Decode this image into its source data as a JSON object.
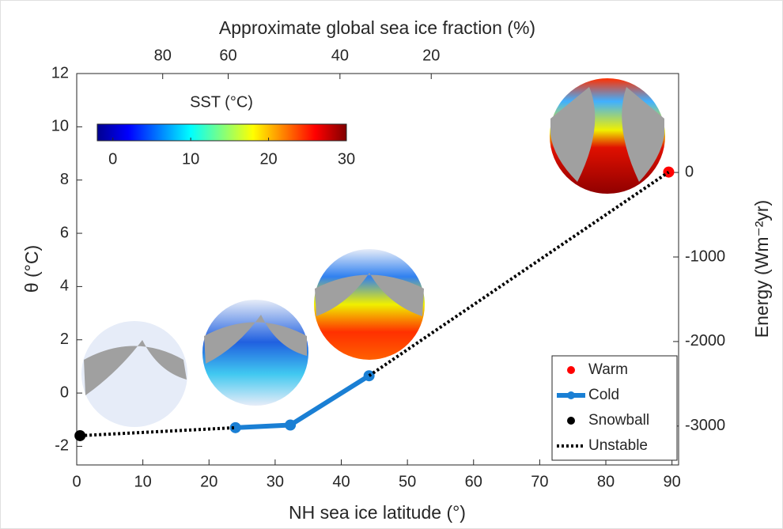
{
  "chart_data": {
    "type": "line",
    "x_label": "NH sea ice latitude (°)",
    "y_label": "θ (°C)",
    "y2_label": "Energy (Wm⁻²yr)",
    "x2_label": "Approximate global sea ice fraction (%)",
    "xlim": [
      0,
      91
    ],
    "xticks": [
      0,
      10,
      20,
      30,
      40,
      50,
      60,
      70,
      80,
      90
    ],
    "ylim": [
      -2.7,
      12
    ],
    "yticks": [
      -2,
      0,
      2,
      4,
      6,
      8,
      10,
      12
    ],
    "y2lim": [
      -3460,
      1170
    ],
    "y2ticks": [
      0,
      -1000,
      -2000,
      -3000
    ],
    "x2ticks": [
      {
        "value": 13.0,
        "label": "80"
      },
      {
        "value": 22.9,
        "label": "60"
      },
      {
        "value": 39.8,
        "label": "40"
      },
      {
        "value": 53.6,
        "label": "20"
      }
    ],
    "colorbar": {
      "title": "SST (°C)",
      "clim": [
        -2,
        30
      ],
      "ticks": [
        0,
        10,
        20,
        30
      ],
      "colormap": "jet"
    },
    "legend": "lower right",
    "series": [
      {
        "name": "Warm",
        "color": "#ff0000",
        "linestyle": "none",
        "marker": true,
        "x": [
          89.5
        ],
        "values": [
          8.3
        ]
      },
      {
        "name": "Cold",
        "color": "#1a7fd4",
        "linestyle": "solid",
        "marker": true,
        "x": [
          24,
          32.3,
          44.2
        ],
        "values": [
          -1.3,
          -1.2,
          0.65
        ]
      },
      {
        "name": "Snowball",
        "color": "#000000",
        "linestyle": "none",
        "marker": true,
        "x": [
          0.5
        ],
        "values": [
          -1.6
        ]
      },
      {
        "name": "Unstable",
        "color": "#000000",
        "linestyle": "dotted",
        "marker": false,
        "x": [
          0.5,
          24,
          null,
          44.2,
          89.5
        ],
        "values": [
          -1.6,
          -1.3,
          null,
          0.65,
          8.3
        ]
      }
    ]
  }
}
